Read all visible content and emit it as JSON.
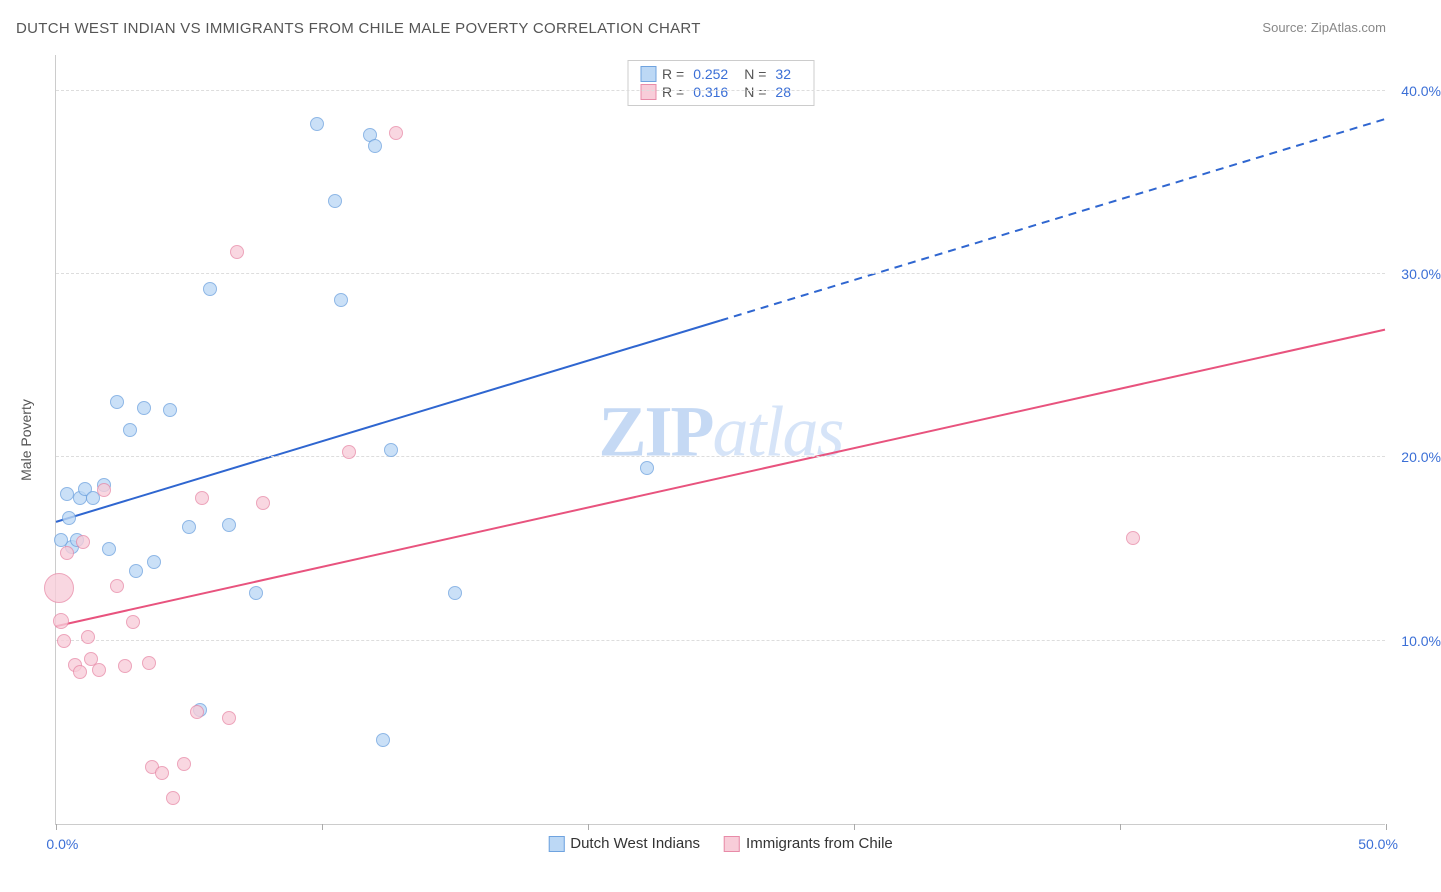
{
  "title": "DUTCH WEST INDIAN VS IMMIGRANTS FROM CHILE MALE POVERTY CORRELATION CHART",
  "source_label": "Source:",
  "source_value": "ZipAtlas.com",
  "ylabel": "Male Poverty",
  "watermark": {
    "part1": "ZIP",
    "part2": "atlas"
  },
  "axes": {
    "xlim": [
      0,
      50
    ],
    "ylim": [
      0,
      42
    ],
    "yticks": [
      10,
      20,
      30,
      40
    ],
    "ytick_labels": [
      "10.0%",
      "20.0%",
      "30.0%",
      "40.0%"
    ],
    "xticks": [
      0,
      10,
      20,
      30,
      40,
      50
    ],
    "xtick_labels": [
      "0.0%",
      "",
      "",
      "",
      "",
      "50.0%"
    ],
    "grid_color": "#dddddd",
    "axis_color": "#cccccc",
    "tick_label_color": "#3b6fd6",
    "label_fontsize": 14
  },
  "series": [
    {
      "id": "dutch",
      "name": "Dutch West Indians",
      "fill": "#bcd8f5",
      "stroke": "#6fa3df",
      "line_color": "#2f66d0",
      "R": "0.252",
      "N": "32",
      "trend": {
        "y_at_x0": 16.5,
        "y_at_x50": 38.5,
        "solid_until_x": 25
      },
      "points": [
        {
          "x": 0.2,
          "y": 15.5,
          "r": 7
        },
        {
          "x": 0.4,
          "y": 18.0,
          "r": 7
        },
        {
          "x": 0.5,
          "y": 16.7,
          "r": 7
        },
        {
          "x": 0.6,
          "y": 15.1,
          "r": 7
        },
        {
          "x": 0.8,
          "y": 15.5,
          "r": 7
        },
        {
          "x": 0.9,
          "y": 17.8,
          "r": 7
        },
        {
          "x": 1.1,
          "y": 18.3,
          "r": 7
        },
        {
          "x": 1.4,
          "y": 17.8,
          "r": 7
        },
        {
          "x": 1.8,
          "y": 18.5,
          "r": 7
        },
        {
          "x": 2.0,
          "y": 15.0,
          "r": 7
        },
        {
          "x": 2.3,
          "y": 23.0,
          "r": 7
        },
        {
          "x": 2.8,
          "y": 21.5,
          "r": 7
        },
        {
          "x": 3.0,
          "y": 13.8,
          "r": 7
        },
        {
          "x": 3.3,
          "y": 22.7,
          "r": 7
        },
        {
          "x": 3.7,
          "y": 14.3,
          "r": 7
        },
        {
          "x": 4.3,
          "y": 22.6,
          "r": 7
        },
        {
          "x": 5.0,
          "y": 16.2,
          "r": 7
        },
        {
          "x": 5.4,
          "y": 6.2,
          "r": 7
        },
        {
          "x": 5.8,
          "y": 29.2,
          "r": 7
        },
        {
          "x": 6.5,
          "y": 16.3,
          "r": 7
        },
        {
          "x": 7.5,
          "y": 12.6,
          "r": 7
        },
        {
          "x": 9.8,
          "y": 38.2,
          "r": 7
        },
        {
          "x": 10.5,
          "y": 34.0,
          "r": 7
        },
        {
          "x": 10.7,
          "y": 28.6,
          "r": 7
        },
        {
          "x": 11.8,
          "y": 37.6,
          "r": 7
        },
        {
          "x": 12.0,
          "y": 37.0,
          "r": 7
        },
        {
          "x": 12.3,
          "y": 4.6,
          "r": 7
        },
        {
          "x": 12.6,
          "y": 20.4,
          "r": 7
        },
        {
          "x": 15.0,
          "y": 12.6,
          "r": 7
        },
        {
          "x": 22.2,
          "y": 19.4,
          "r": 7
        }
      ]
    },
    {
      "id": "chile",
      "name": "Immigrants from Chile",
      "fill": "#f8cdd9",
      "stroke": "#e88ba8",
      "line_color": "#e8537e",
      "R": "0.316",
      "N": "28",
      "trend": {
        "y_at_x0": 10.8,
        "y_at_x50": 27.0,
        "solid_until_x": 50
      },
      "points": [
        {
          "x": 0.1,
          "y": 12.9,
          "r": 15
        },
        {
          "x": 0.2,
          "y": 11.1,
          "r": 8
        },
        {
          "x": 0.3,
          "y": 10.0,
          "r": 7
        },
        {
          "x": 0.4,
          "y": 14.8,
          "r": 7
        },
        {
          "x": 0.7,
          "y": 8.7,
          "r": 7
        },
        {
          "x": 0.9,
          "y": 8.3,
          "r": 7
        },
        {
          "x": 1.0,
          "y": 15.4,
          "r": 7
        },
        {
          "x": 1.2,
          "y": 10.2,
          "r": 7
        },
        {
          "x": 1.3,
          "y": 9.0,
          "r": 7
        },
        {
          "x": 1.6,
          "y": 8.4,
          "r": 7
        },
        {
          "x": 1.8,
          "y": 18.2,
          "r": 7
        },
        {
          "x": 2.3,
          "y": 13.0,
          "r": 7
        },
        {
          "x": 2.6,
          "y": 8.6,
          "r": 7
        },
        {
          "x": 2.9,
          "y": 11.0,
          "r": 7
        },
        {
          "x": 3.5,
          "y": 8.8,
          "r": 7
        },
        {
          "x": 3.6,
          "y": 3.1,
          "r": 7
        },
        {
          "x": 4.0,
          "y": 2.8,
          "r": 7
        },
        {
          "x": 4.4,
          "y": 1.4,
          "r": 7
        },
        {
          "x": 4.8,
          "y": 3.3,
          "r": 7
        },
        {
          "x": 5.3,
          "y": 6.1,
          "r": 7
        },
        {
          "x": 5.5,
          "y": 17.8,
          "r": 7
        },
        {
          "x": 6.5,
          "y": 5.8,
          "r": 7
        },
        {
          "x": 6.8,
          "y": 31.2,
          "r": 7
        },
        {
          "x": 7.8,
          "y": 17.5,
          "r": 7
        },
        {
          "x": 11.0,
          "y": 20.3,
          "r": 7
        },
        {
          "x": 12.8,
          "y": 37.7,
          "r": 7
        },
        {
          "x": 40.5,
          "y": 15.6,
          "r": 7
        }
      ]
    }
  ],
  "legend_stat_labels": {
    "R": "R =",
    "N": "N ="
  }
}
